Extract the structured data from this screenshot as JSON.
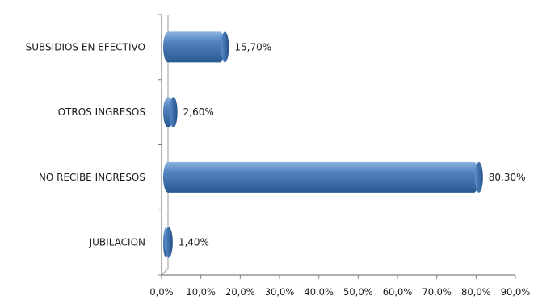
{
  "chart_data": {
    "type": "bar",
    "orientation": "horizontal",
    "title": "",
    "xlabel": "",
    "ylabel": "",
    "categories": [
      "JUBILACION",
      "NO RECIBE INGRESOS",
      "OTROS INGRESOS",
      "SUBSIDIOS EN EFECTIVO"
    ],
    "values": [
      1.4,
      80.3,
      2.6,
      15.7
    ],
    "value_labels": [
      "1,40%",
      "80,30%",
      "2,60%",
      "15,70%"
    ],
    "xlim": [
      0,
      90
    ],
    "x_ticks": [
      0,
      10,
      20,
      30,
      40,
      50,
      60,
      70,
      80,
      90
    ],
    "x_tick_labels": [
      "0,0%",
      "10,0%",
      "20,0%",
      "30,0%",
      "40,0%",
      "50,0%",
      "60,0%",
      "70,0%",
      "80,0%",
      "90,0%"
    ],
    "grid": false,
    "legend": "none",
    "bar_color": "#4f81bd",
    "bar_color_dark": "#2b5a93",
    "bar_color_light": "#8db3e2"
  }
}
